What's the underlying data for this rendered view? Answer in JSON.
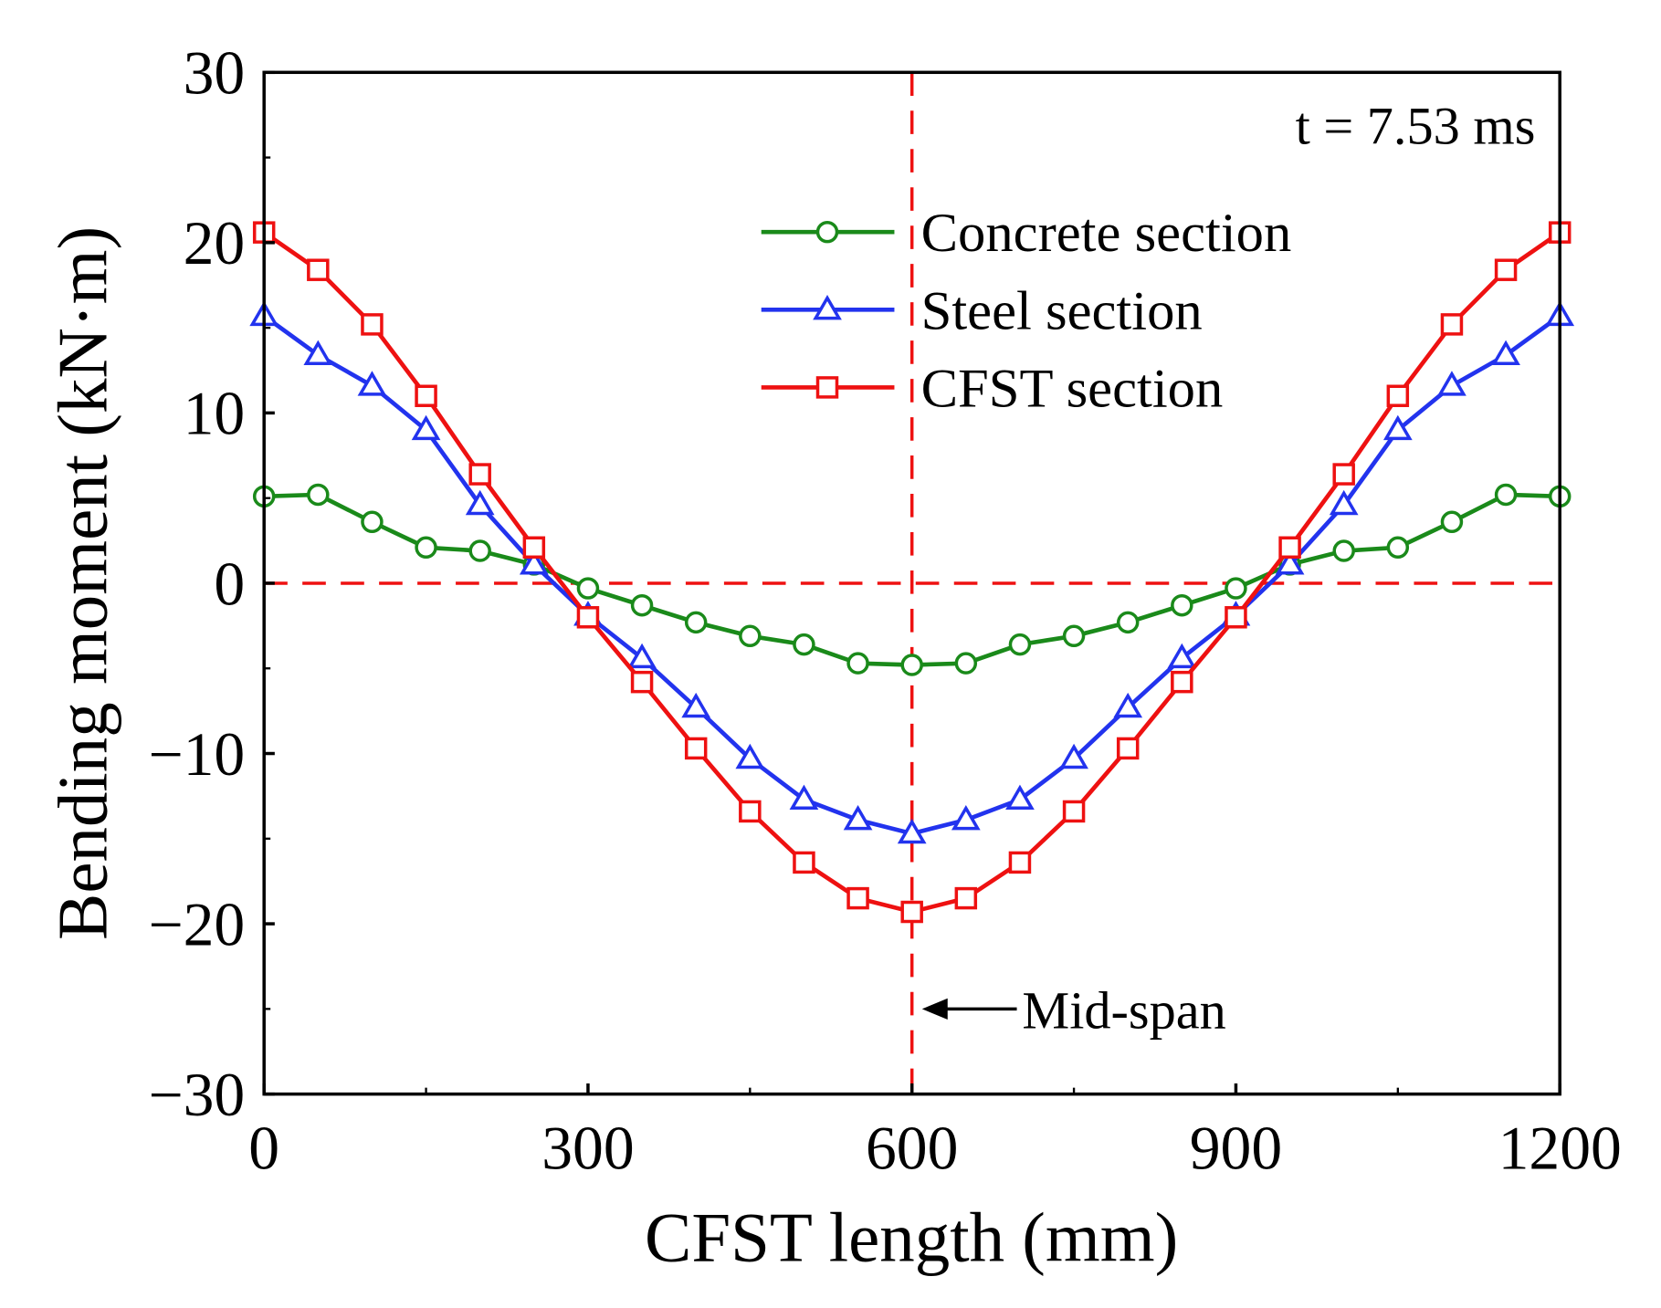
{
  "chart_data": {
    "type": "line",
    "xlabel": "CFST length (mm)",
    "ylabel": "Bending moment (kN·m)",
    "xlim": [
      0,
      1200
    ],
    "ylim": [
      -30,
      30
    ],
    "xticks": [
      0,
      300,
      600,
      900,
      1200
    ],
    "yticks": [
      30,
      20,
      10,
      0,
      -10,
      -20,
      -30
    ],
    "ytick_labels": [
      "30",
      "20",
      "10",
      "0",
      "−10",
      "−20",
      "−30"
    ],
    "annotation_time": "t = 7.53 ms",
    "annotation_midspan": "Mid-span",
    "reference_lines": {
      "x": 600,
      "y": 0
    },
    "legend_position": "upper-center-right",
    "x": [
      0,
      50,
      100,
      150,
      200,
      250,
      300,
      350,
      400,
      450,
      500,
      550,
      600,
      650,
      700,
      750,
      800,
      850,
      900,
      950,
      1000,
      1050,
      1100,
      1150,
      1200
    ],
    "series": [
      {
        "name": "Concrete section",
        "color": "#1a8a1a",
        "marker": "circle",
        "values": [
          5.1,
          5.2,
          3.6,
          2.1,
          1.9,
          1.1,
          -0.3,
          -1.3,
          -2.3,
          -3.1,
          -3.6,
          -4.7,
          -4.8,
          -4.7,
          -3.6,
          -3.1,
          -2.3,
          -1.3,
          -0.3,
          1.1,
          1.9,
          2.1,
          3.6,
          5.2,
          5.1
        ]
      },
      {
        "name": "Steel section",
        "color": "#2233ee",
        "marker": "triangle",
        "values": [
          15.7,
          13.4,
          11.6,
          9.0,
          4.6,
          1.1,
          -1.9,
          -4.4,
          -7.3,
          -10.3,
          -12.7,
          -13.9,
          -14.7,
          -13.9,
          -12.7,
          -10.3,
          -7.3,
          -4.4,
          -1.9,
          1.1,
          4.6,
          9.0,
          11.6,
          13.4,
          15.7
        ]
      },
      {
        "name": "CFST section",
        "color": "#ee1111",
        "marker": "square",
        "values": [
          20.6,
          18.4,
          15.2,
          11.0,
          6.4,
          2.1,
          -2.0,
          -5.8,
          -9.7,
          -13.4,
          -16.4,
          -18.5,
          -19.3,
          -18.5,
          -16.4,
          -13.4,
          -9.7,
          -5.8,
          -2.0,
          2.1,
          6.4,
          11.0,
          15.2,
          18.4,
          20.6
        ]
      }
    ]
  }
}
